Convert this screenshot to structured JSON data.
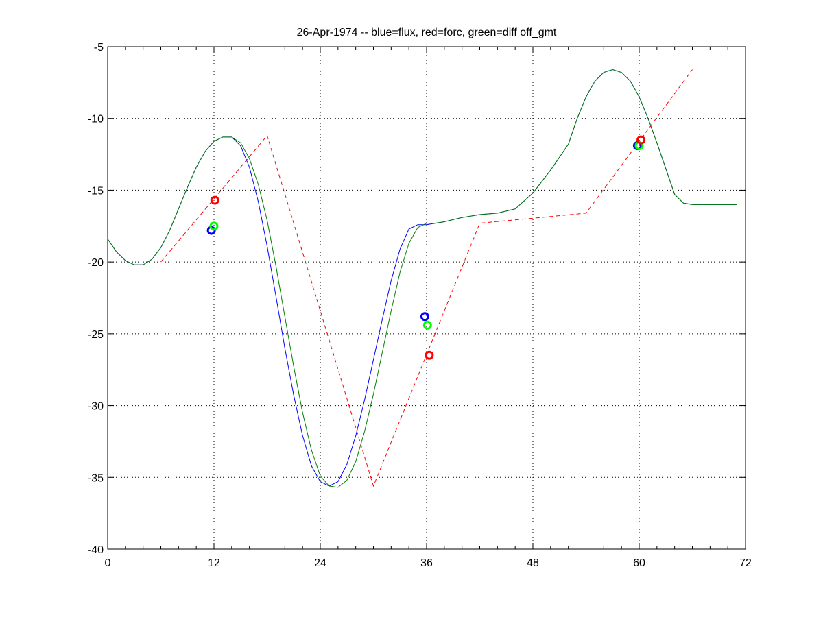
{
  "chart_data": {
    "type": "line",
    "title": "26-Apr-1974 -- blue=flux, red=forc, green=diff off_gmt",
    "xlabel": "",
    "ylabel": "",
    "xlim": [
      0,
      72
    ],
    "ylim": [
      -40,
      -5
    ],
    "xticks": [
      0,
      12,
      24,
      36,
      48,
      60,
      72
    ],
    "xtick_labels": [
      "0",
      "12",
      "24",
      "36",
      "48",
      "60",
      "72"
    ],
    "yticks": [
      -40,
      -35,
      -30,
      -25,
      -20,
      -15,
      -10,
      -5
    ],
    "ytick_labels": [
      "-40",
      "-35",
      "-30",
      "-25",
      "-20",
      "-15",
      "-10",
      "-5"
    ],
    "grid": true,
    "colors": {
      "blue": "#0000ff",
      "green": "#007f00",
      "red": "#ff0000",
      "marker_green": "#00ff00"
    },
    "series": [
      {
        "color": "blue",
        "style": "solid",
        "x": [
          0,
          1,
          2,
          3,
          4,
          5,
          6,
          7,
          8,
          9,
          10,
          11,
          12,
          13,
          14,
          15,
          16,
          17,
          18,
          19,
          20,
          21,
          22,
          23,
          24,
          25,
          26,
          27,
          28,
          29,
          30,
          31,
          32,
          33,
          34,
          35,
          36,
          37,
          38,
          40,
          42,
          44,
          46,
          48,
          50,
          52,
          53,
          54,
          55,
          56,
          57,
          58,
          59,
          60,
          61,
          62,
          63,
          64,
          65,
          66,
          67,
          68,
          69,
          70,
          71
        ],
        "y": [
          -18.4,
          -19.3,
          -19.9,
          -20.2,
          -20.2,
          -19.8,
          -19.0,
          -17.8,
          -16.3,
          -14.8,
          -13.4,
          -12.3,
          -11.6,
          -11.3,
          -11.3,
          -11.9,
          -13.4,
          -15.8,
          -18.9,
          -22.4,
          -26.0,
          -29.3,
          -32.1,
          -34.2,
          -35.3,
          -35.6,
          -35.3,
          -34.1,
          -32.1,
          -29.6,
          -26.8,
          -24.0,
          -21.3,
          -19.1,
          -17.7,
          -17.4,
          -17.4,
          -17.3,
          -17.2,
          -16.9,
          -16.7,
          -16.6,
          -16.3,
          -15.2,
          -13.6,
          -11.8,
          -10.0,
          -8.5,
          -7.4,
          -6.8,
          -6.6,
          -6.8,
          -7.4,
          -8.5,
          -10.0,
          -11.7,
          -13.5,
          -15.3,
          -15.9,
          -16.0,
          -16.0,
          -16.0,
          -16.0,
          -16.0,
          -16.0
        ],
        "markers": [
          {
            "x": 11.7,
            "y": -17.8
          }
        ]
      },
      {
        "color": "green",
        "style": "solid",
        "x": [
          0,
          1,
          2,
          3,
          4,
          5,
          6,
          7,
          8,
          9,
          10,
          11,
          12,
          13,
          14,
          15,
          16,
          17,
          18,
          19,
          20,
          21,
          22,
          23,
          24,
          25,
          26,
          27,
          28,
          29,
          30,
          31,
          32,
          33,
          34,
          35,
          36,
          37,
          38,
          40,
          42,
          44,
          46,
          48,
          50,
          52,
          53,
          54,
          55,
          56,
          57,
          58,
          59,
          60,
          61,
          62,
          63,
          64,
          65,
          66,
          67,
          68,
          69,
          70,
          71
        ],
        "y": [
          -18.4,
          -19.3,
          -19.9,
          -20.2,
          -20.2,
          -19.8,
          -19.0,
          -17.8,
          -16.3,
          -14.8,
          -13.4,
          -12.3,
          -11.6,
          -11.3,
          -11.3,
          -11.7,
          -12.8,
          -14.6,
          -17.1,
          -20.3,
          -23.8,
          -27.3,
          -30.5,
          -33.1,
          -34.9,
          -35.6,
          -35.7,
          -35.2,
          -33.9,
          -31.8,
          -29.2,
          -26.3,
          -23.4,
          -20.7,
          -18.7,
          -17.6,
          -17.3,
          -17.3,
          -17.2,
          -16.9,
          -16.7,
          -16.6,
          -16.3,
          -15.2,
          -13.6,
          -11.8,
          -10.0,
          -8.5,
          -7.4,
          -6.8,
          -6.6,
          -6.8,
          -7.4,
          -8.5,
          -10.0,
          -11.7,
          -13.5,
          -15.3,
          -15.9,
          -16.0,
          -16.0,
          -16.0,
          -16.0,
          -16.0,
          -16.0
        ],
        "markers": [
          {
            "x": 12.0,
            "y": -17.5
          }
        ]
      },
      {
        "color": "red",
        "style": "dashed",
        "x": [
          6,
          18,
          30,
          42,
          54,
          66
        ],
        "y": [
          -20.0,
          -11.2,
          -35.6,
          -17.3,
          -16.6,
          -6.6
        ],
        "markers": [
          {
            "x": 12.1,
            "y": -15.7
          }
        ]
      }
    ],
    "extra_markers": [
      {
        "color": "blue",
        "x": 35.8,
        "y": -23.8
      },
      {
        "color": "green",
        "x": 36.1,
        "y": -24.4
      },
      {
        "color": "red",
        "x": 36.3,
        "y": -26.5
      },
      {
        "color": "blue",
        "x": 59.8,
        "y": -11.9
      },
      {
        "color": "green",
        "x": 60.0,
        "y": -11.9
      },
      {
        "color": "red",
        "x": 60.2,
        "y": -11.5
      }
    ]
  }
}
